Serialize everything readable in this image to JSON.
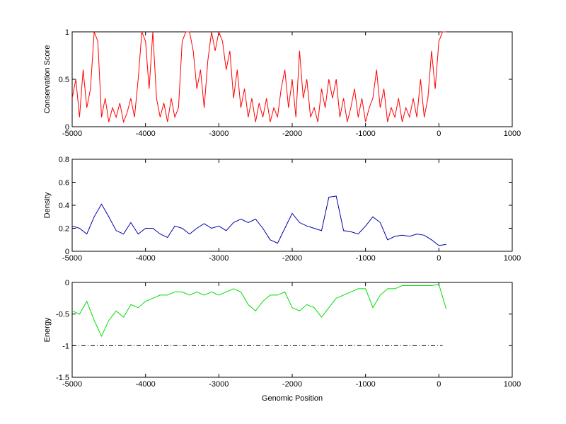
{
  "chart_data": [
    {
      "type": "line",
      "ylabel": "Conservation Score",
      "x": [
        -5000,
        -4950,
        -4900,
        -4850,
        -4800,
        -4750,
        -4700,
        -4650,
        -4600,
        -4550,
        -4500,
        -4450,
        -4400,
        -4350,
        -4300,
        -4250,
        -4200,
        -4150,
        -4100,
        -4050,
        -4000,
        -3950,
        -3900,
        -3850,
        -3800,
        -3750,
        -3700,
        -3650,
        -3600,
        -3550,
        -3500,
        -3450,
        -3400,
        -3350,
        -3300,
        -3250,
        -3200,
        -3150,
        -3100,
        -3050,
        -3000,
        -2950,
        -2900,
        -2850,
        -2800,
        -2750,
        -2700,
        -2650,
        -2600,
        -2550,
        -2500,
        -2450,
        -2400,
        -2350,
        -2300,
        -2250,
        -2200,
        -2150,
        -2100,
        -2050,
        -2000,
        -1950,
        -1900,
        -1850,
        -1800,
        -1750,
        -1700,
        -1650,
        -1600,
        -1550,
        -1500,
        -1450,
        -1400,
        -1350,
        -1300,
        -1250,
        -1200,
        -1150,
        -1100,
        -1050,
        -1000,
        -950,
        -900,
        -850,
        -800,
        -750,
        -700,
        -650,
        -600,
        -550,
        -500,
        -450,
        -400,
        -350,
        -300,
        -250,
        -200,
        -150,
        -100,
        -50,
        0,
        50,
        100
      ],
      "series": [
        {
          "color": "#ff0000",
          "values": [
            0.3,
            0.5,
            0.1,
            0.6,
            0.2,
            0.4,
            1,
            0.9,
            0.1,
            0.3,
            0.05,
            0.2,
            0.1,
            0.25,
            0.05,
            0.15,
            0.3,
            0.1,
            0.5,
            1,
            0.9,
            0.4,
            1,
            0.3,
            0.1,
            0.25,
            0.05,
            0.3,
            0.1,
            0.2,
            0.9,
            1,
            1,
            0.8,
            0.4,
            0.6,
            0.2,
            0.7,
            1,
            0.8,
            1,
            0.9,
            0.6,
            0.8,
            0.3,
            0.6,
            0.2,
            0.4,
            0.1,
            0.3,
            0.05,
            0.25,
            0.1,
            0.3,
            0.05,
            0.2,
            0.1,
            0.4,
            0.6,
            0.2,
            0.5,
            0.1,
            0.8,
            0.3,
            0.5,
            0.1,
            0.2,
            0.05,
            0.4,
            0.2,
            0.5,
            0.3,
            0.5,
            0.1,
            0.3,
            0.05,
            0.2,
            0.4,
            0.1,
            0.3,
            0.05,
            0.2,
            0.3,
            0.6,
            0.2,
            0.4,
            0.05,
            0.2,
            0.1,
            0.3,
            0.05,
            0.2,
            0.1,
            0.3,
            0.1,
            0.5,
            0.1,
            0.3,
            0.8,
            0.4,
            0.9,
            1,
            1
          ]
        }
      ],
      "xlim": [
        -5000,
        1000
      ],
      "xticks": [
        -5000,
        -4000,
        -3000,
        -2000,
        -1000,
        0,
        1000
      ],
      "ylim": [
        0,
        1
      ],
      "yticks": [
        0,
        0.5,
        1
      ]
    },
    {
      "type": "line",
      "ylabel": "Density",
      "x": [
        -5000,
        -4900,
        -4800,
        -4700,
        -4600,
        -4500,
        -4400,
        -4300,
        -4200,
        -4100,
        -4000,
        -3900,
        -3800,
        -3700,
        -3600,
        -3500,
        -3400,
        -3300,
        -3200,
        -3100,
        -3000,
        -2900,
        -2800,
        -2700,
        -2600,
        -2500,
        -2400,
        -2300,
        -2200,
        -2100,
        -2000,
        -1900,
        -1800,
        -1700,
        -1600,
        -1500,
        -1400,
        -1300,
        -1200,
        -1100,
        -1000,
        -900,
        -800,
        -700,
        -600,
        -500,
        -400,
        -300,
        -200,
        -100,
        0,
        100
      ],
      "series": [
        {
          "color": "#0000aa",
          "values": [
            0.22,
            0.2,
            0.15,
            0.3,
            0.41,
            0.3,
            0.18,
            0.15,
            0.25,
            0.15,
            0.2,
            0.2,
            0.15,
            0.12,
            0.22,
            0.2,
            0.15,
            0.2,
            0.24,
            0.2,
            0.22,
            0.18,
            0.25,
            0.28,
            0.25,
            0.28,
            0.2,
            0.1,
            0.07,
            0.2,
            0.33,
            0.25,
            0.22,
            0.2,
            0.18,
            0.47,
            0.48,
            0.18,
            0.17,
            0.15,
            0.22,
            0.3,
            0.25,
            0.1,
            0.13,
            0.14,
            0.13,
            0.15,
            0.14,
            0.1,
            0.05,
            0.06
          ]
        }
      ],
      "xlim": [
        -5000,
        1000
      ],
      "xticks": [
        -5000,
        -4000,
        -3000,
        -2000,
        -1000,
        0,
        1000
      ],
      "ylim": [
        0,
        0.8
      ],
      "yticks": [
        0,
        0.2,
        0.4,
        0.6,
        0.8
      ]
    },
    {
      "type": "line",
      "ylabel": "Energy",
      "xlabel": "Genomic Position",
      "x": [
        -5000,
        -4900,
        -4800,
        -4700,
        -4600,
        -4500,
        -4400,
        -4300,
        -4200,
        -4100,
        -4000,
        -3900,
        -3800,
        -3700,
        -3600,
        -3500,
        -3400,
        -3300,
        -3200,
        -3100,
        -3000,
        -2900,
        -2800,
        -2700,
        -2600,
        -2500,
        -2400,
        -2300,
        -2200,
        -2100,
        -2000,
        -1900,
        -1800,
        -1700,
        -1600,
        -1500,
        -1400,
        -1300,
        -1200,
        -1100,
        -1000,
        -900,
        -800,
        -700,
        -600,
        -500,
        -400,
        -300,
        -200,
        -100,
        0,
        100
      ],
      "series": [
        {
          "color": "#00dd00",
          "values": [
            -0.45,
            -0.5,
            -0.3,
            -0.6,
            -0.85,
            -0.6,
            -0.45,
            -0.55,
            -0.35,
            -0.4,
            -0.3,
            -0.25,
            -0.2,
            -0.2,
            -0.15,
            -0.15,
            -0.2,
            -0.15,
            -0.2,
            -0.15,
            -0.2,
            -0.15,
            -0.1,
            -0.15,
            -0.35,
            -0.45,
            -0.3,
            -0.2,
            -0.2,
            -0.15,
            -0.4,
            -0.45,
            -0.35,
            -0.4,
            -0.55,
            -0.4,
            -0.25,
            -0.2,
            -0.15,
            -0.1,
            -0.1,
            -0.4,
            -0.2,
            -0.1,
            -0.1,
            -0.05,
            -0.05,
            -0.05,
            -0.05,
            -0.05,
            -0.03,
            -0.42
          ]
        }
      ],
      "hline": {
        "value": -1,
        "x": [
          -5000,
          50
        ],
        "color": "#000000"
      },
      "xlim": [
        -5000,
        1000
      ],
      "xticks": [
        -5000,
        -4000,
        -3000,
        -2000,
        -1000,
        0,
        1000
      ],
      "ylim": [
        -1.5,
        0
      ],
      "yticks": [
        -1.5,
        -1,
        -0.5,
        0
      ]
    }
  ]
}
